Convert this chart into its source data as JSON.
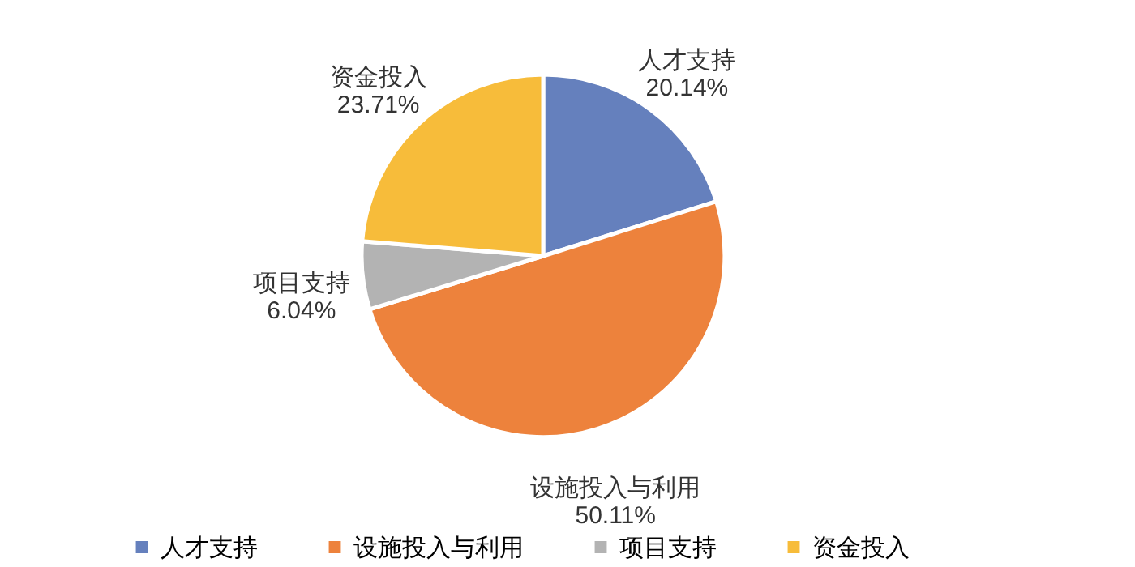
{
  "chart_data": {
    "type": "pie",
    "categories": [
      "人才支持",
      "设施投入与利用",
      "项目支持",
      "资金投入"
    ],
    "values": [
      20.14,
      50.11,
      6.04,
      23.71
    ],
    "colors": [
      "#6580bd",
      "#ed823c",
      "#b3b3b3",
      "#f7bc3a"
    ],
    "value_labels": [
      "20.14%",
      "50.11%",
      "6.04%",
      "23.71%"
    ],
    "legend": "bottom"
  }
}
